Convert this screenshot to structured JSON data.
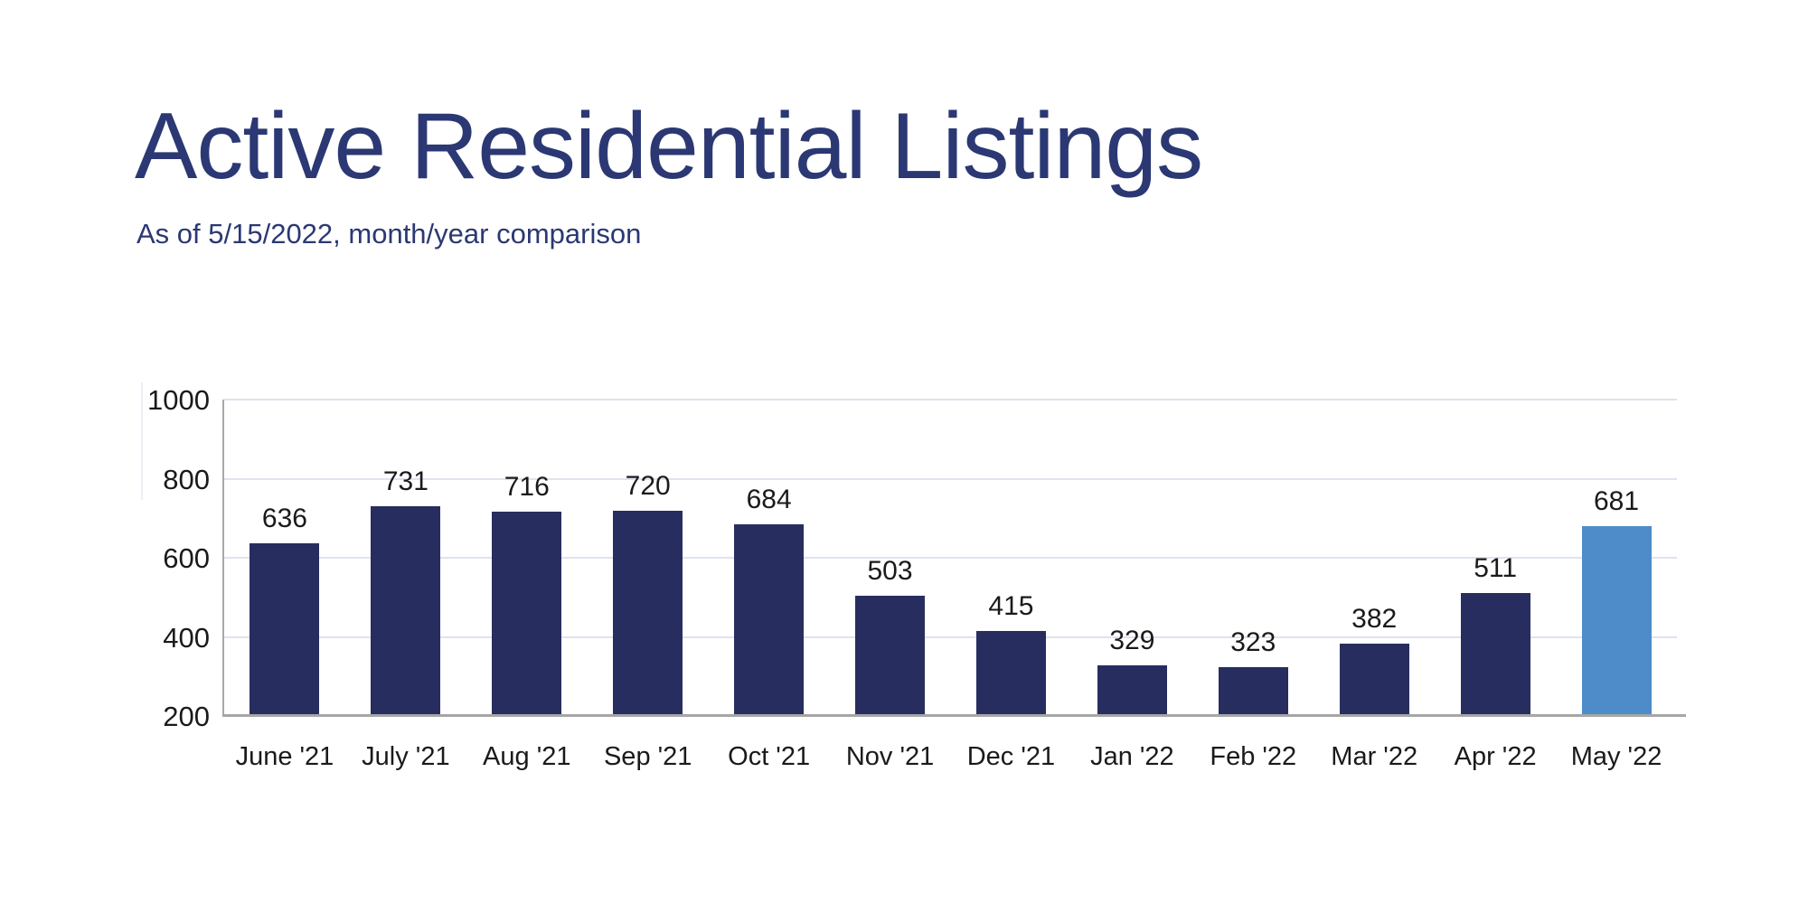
{
  "header": {
    "title": "Active Residential Listings",
    "subtitle": "As of 5/15/2022, month/year comparison",
    "title_color": "#2b3873",
    "subtitle_color": "#2b3873"
  },
  "chart_data": {
    "type": "bar",
    "title": "Active Residential Listings",
    "subtitle": "As of 5/15/2022, month/year comparison",
    "categories": [
      "June '21",
      "July '21",
      "Aug '21",
      "Sep '21",
      "Oct '21",
      "Nov '21",
      "Dec '21",
      "Jan '22",
      "Feb '22",
      "Mar '22",
      "Apr '22",
      "May '22"
    ],
    "values": [
      636,
      731,
      716,
      720,
      684,
      503,
      415,
      329,
      323,
      382,
      511,
      681
    ],
    "value_labels_shown": true,
    "xlabel": "",
    "ylabel": "",
    "ylim": [
      200,
      1000
    ],
    "yticks": [
      200,
      400,
      600,
      800,
      1000
    ],
    "grid": true,
    "legend": "none",
    "bar_color": "#272e5f",
    "highlight_bar_color": "#4e8bc9",
    "highlight_index": 11,
    "gridline_color": "#dfe3ee",
    "axis_line_color": "#a6a6a6",
    "tick_label_color": "#1a1a1a"
  }
}
